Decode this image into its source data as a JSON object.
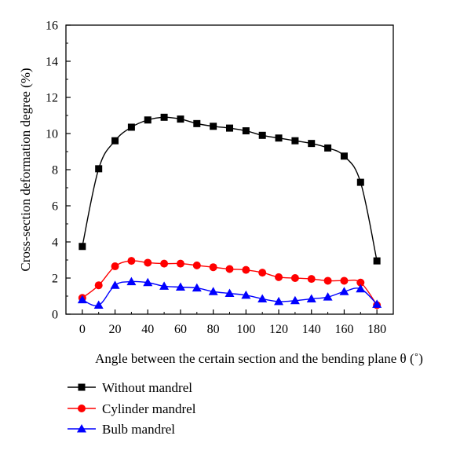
{
  "chart_data": {
    "type": "line",
    "xlabel": "Angle between the certain section and the bending plane θ (˚)",
    "ylabel": "Cross-section deformation degree (%)",
    "xlim": [
      -10,
      190
    ],
    "ylim": [
      0,
      16
    ],
    "xticks": [
      0,
      20,
      40,
      60,
      80,
      100,
      120,
      140,
      160,
      180
    ],
    "yticks": [
      0,
      2,
      4,
      6,
      8,
      10,
      12,
      14,
      16
    ],
    "legend_position": "below",
    "series": [
      {
        "name": "Without mandrel",
        "color": "#000000",
        "marker": "square",
        "x": [
          0,
          10,
          20,
          30,
          40,
          50,
          60,
          70,
          80,
          90,
          100,
          110,
          120,
          130,
          140,
          150,
          160,
          170,
          180
        ],
        "y": [
          3.75,
          8.05,
          9.6,
          10.35,
          10.75,
          10.9,
          10.8,
          10.55,
          10.4,
          10.3,
          10.15,
          9.9,
          9.75,
          9.6,
          9.45,
          9.2,
          8.75,
          7.3,
          2.95
        ]
      },
      {
        "name": "Cylinder mandrel",
        "color": "#ff0000",
        "marker": "circle",
        "x": [
          0,
          10,
          20,
          30,
          40,
          50,
          60,
          70,
          80,
          90,
          100,
          110,
          120,
          130,
          140,
          150,
          160,
          170,
          180
        ],
        "y": [
          0.9,
          1.6,
          2.65,
          2.95,
          2.85,
          2.8,
          2.8,
          2.7,
          2.6,
          2.5,
          2.45,
          2.3,
          2.05,
          2.0,
          1.95,
          1.85,
          1.85,
          1.75,
          0.5
        ]
      },
      {
        "name": "Bulb mandrel",
        "color": "#0000ff",
        "marker": "triangle",
        "x": [
          0,
          10,
          20,
          30,
          40,
          50,
          60,
          70,
          80,
          90,
          100,
          110,
          120,
          130,
          140,
          150,
          160,
          170,
          180
        ],
        "y": [
          0.8,
          0.5,
          1.6,
          1.8,
          1.75,
          1.55,
          1.5,
          1.45,
          1.25,
          1.15,
          1.05,
          0.85,
          0.7,
          0.75,
          0.85,
          0.95,
          1.25,
          1.4,
          0.55
        ]
      }
    ]
  }
}
